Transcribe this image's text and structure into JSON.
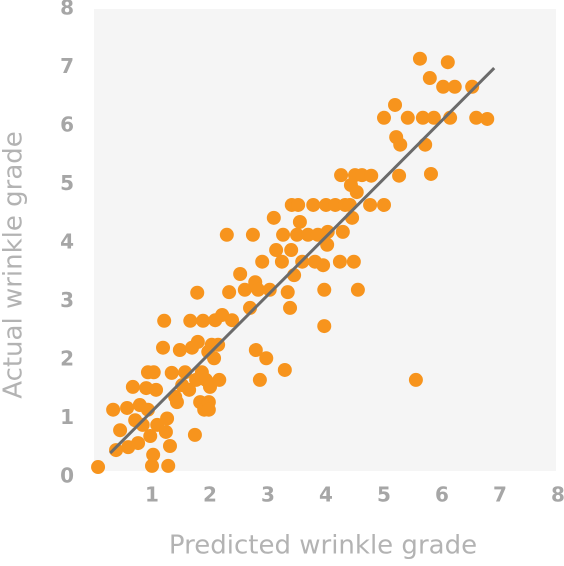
{
  "chart_data": {
    "type": "scatter",
    "x_label": "Predicted wrinkle grade",
    "y_label": "Actual wrinkle grade",
    "xlim": [
      0,
      8
    ],
    "ylim": [
      0,
      8
    ],
    "xticks": [
      1,
      2,
      3,
      4,
      5,
      6,
      7,
      8
    ],
    "yticks": [
      0,
      1,
      2,
      3,
      4,
      5,
      6,
      7,
      8
    ],
    "color": "#f7941d",
    "trendline": {
      "x": [
        0.28,
        6.9
      ],
      "y": [
        0.41,
        6.99
      ],
      "color": "#6b6b6b"
    },
    "x": [
      0.07,
      0.33,
      0.38,
      0.45,
      0.57,
      0.59,
      0.67,
      0.71,
      0.76,
      0.79,
      0.84,
      0.9,
      0.93,
      0.93,
      0.97,
      1.0,
      1.03,
      1.07,
      1.02,
      1.09,
      1.19,
      1.21,
      1.24,
      1.26,
      1.28,
      1.31,
      1.34,
      1.4,
      1.43,
      1.48,
      1.52,
      1.57,
      1.64,
      1.66,
      1.69,
      1.74,
      1.76,
      1.78,
      1.79,
      1.83,
      1.86,
      1.88,
      1.9,
      1.93,
      1.97,
      1.98,
      1.98,
      2.0,
      2.03,
      2.07,
      2.09,
      2.14,
      2.16,
      2.21,
      2.29,
      2.33,
      2.38,
      2.52,
      2.6,
      2.69,
      2.74,
      2.78,
      2.79,
      2.83,
      2.86,
      2.9,
      2.97,
      3.03,
      3.1,
      3.14,
      3.24,
      3.26,
      3.29,
      3.34,
      3.38,
      3.4,
      3.41,
      3.45,
      3.5,
      3.52,
      3.55,
      3.59,
      3.69,
      3.78,
      3.81,
      3.86,
      3.95,
      3.97,
      3.97,
      4.0,
      4.02,
      4.03,
      4.16,
      4.24,
      4.26,
      4.29,
      4.33,
      4.41,
      4.43,
      4.45,
      4.48,
      4.5,
      4.53,
      4.55,
      4.62,
      4.76,
      4.78,
      5.0,
      5.0,
      5.19,
      5.21,
      5.28,
      5.26,
      5.41,
      5.55,
      5.62,
      5.67,
      5.71,
      5.79,
      5.81,
      5.86,
      6.02,
      6.1,
      6.14,
      6.22,
      6.52,
      6.59,
      6.78
    ],
    "values": [
      0.17,
      1.15,
      0.46,
      0.8,
      1.18,
      0.51,
      1.54,
      0.97,
      0.58,
      1.23,
      0.89,
      1.52,
      1.15,
      1.79,
      0.7,
      0.19,
      1.79,
      1.49,
      0.38,
      0.89,
      2.21,
      2.67,
      0.77,
      1.0,
      0.19,
      0.53,
      1.78,
      1.37,
      1.28,
      2.17,
      1.57,
      1.79,
      1.49,
      2.67,
      2.21,
      0.72,
      1.66,
      3.15,
      2.31,
      1.28,
      1.79,
      2.67,
      1.15,
      1.66,
      2.14,
      1.28,
      1.15,
      1.54,
      2.26,
      2.03,
      2.68,
      2.26,
      1.66,
      2.77,
      4.14,
      3.16,
      2.68,
      3.47,
      3.2,
      2.89,
      4.14,
      3.33,
      2.17,
      3.2,
      1.66,
      3.68,
      2.03,
      3.2,
      4.43,
      3.88,
      3.68,
      4.14,
      1.83,
      3.16,
      2.89,
      3.88,
      4.65,
      3.45,
      4.14,
      4.65,
      4.36,
      3.68,
      4.14,
      4.65,
      3.68,
      4.14,
      3.62,
      3.2,
      2.58,
      4.65,
      3.97,
      4.19,
      4.65,
      3.68,
      5.16,
      4.19,
      4.65,
      4.65,
      4.99,
      4.43,
      3.68,
      5.16,
      4.87,
      3.2,
      5.16,
      4.65,
      5.15,
      4.65,
      6.14,
      6.36,
      5.81,
      5.68,
      5.15,
      6.14,
      1.66,
      7.15,
      6.14,
      5.68,
      6.82,
      5.18,
      6.14,
      6.67,
      7.09,
      6.14,
      6.67,
      6.67,
      6.14,
      6.12
    ]
  }
}
